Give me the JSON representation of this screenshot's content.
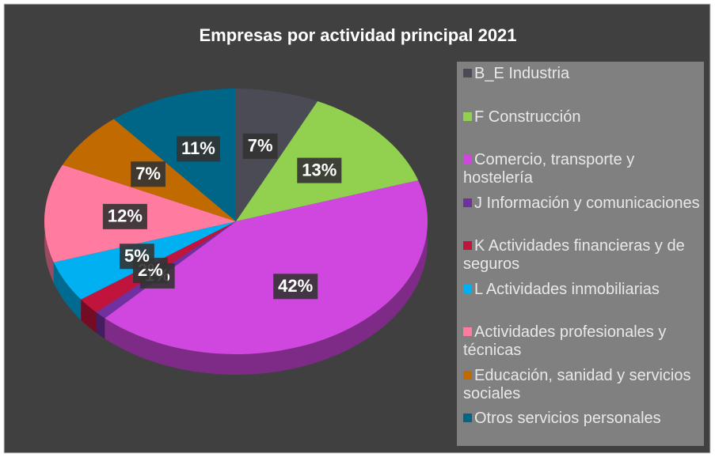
{
  "chart_data": {
    "type": "pie",
    "title": "Empresas por actividad principal 2021",
    "categories": [
      "B_E Industria",
      "F Construcción",
      "Comercio, transporte y hostelería",
      "J Información y comunicaciones",
      "K Actividades financieras y de seguros",
      "L Actividades inmobiliarias",
      "Actividades profesionales y técnicas",
      "Educación, sanidad y servicios sociales",
      "Otros servicios personales"
    ],
    "values": [
      7,
      13,
      42,
      1,
      2,
      5,
      12,
      7,
      11
    ],
    "value_labels": [
      "7%",
      "13%",
      "42%",
      "1%",
      "2%",
      "5%",
      "12%",
      "7%",
      "11%"
    ],
    "colors": [
      "#4b4b55",
      "#92d050",
      "#d047e0",
      "#7030a0",
      "#c0143c",
      "#00b0f0",
      "#ff7ca0",
      "#c06a00",
      "#006688"
    ],
    "legend": "right"
  }
}
